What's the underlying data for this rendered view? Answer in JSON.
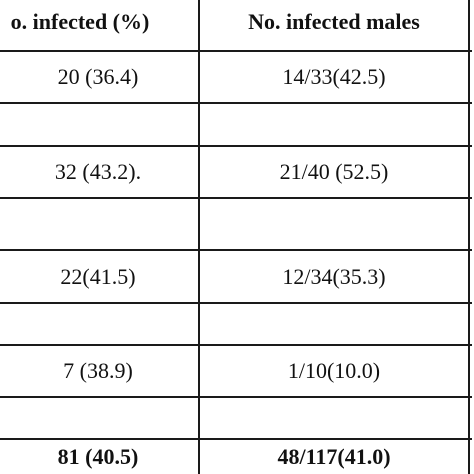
{
  "table": {
    "header": {
      "infected": "o. infected (%)",
      "infected_males": "No. infected males"
    },
    "rows": [
      {
        "infected": "20 (36.4)",
        "infected_males": "14/33(42.5)"
      },
      {
        "infected": "",
        "infected_males": ""
      },
      {
        "infected": "32 (43.2).",
        "infected_males": "21/40 (52.5)"
      },
      {
        "infected": "",
        "infected_males": ""
      },
      {
        "infected": "22(41.5)",
        "infected_males": "12/34(35.3)"
      },
      {
        "infected": "",
        "infected_males": ""
      },
      {
        "infected": "7 (38.9)",
        "infected_males": "1/10(10.0)"
      },
      {
        "infected": "",
        "infected_males": ""
      }
    ],
    "total": {
      "infected": "81 (40.5)",
      "infected_males": "48/117(41.0)"
    }
  }
}
